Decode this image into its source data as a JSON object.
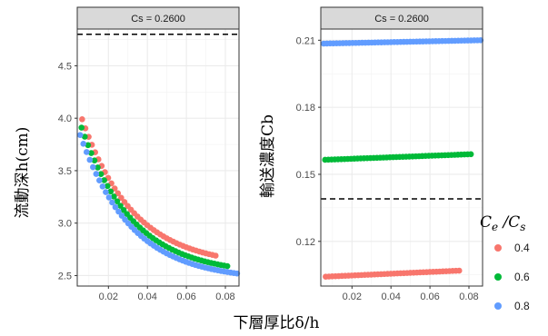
{
  "chart_data": {
    "type": "scatter",
    "xlabel": "下層厚比δ/h",
    "legend": {
      "title": "Ce/Cs",
      "position": "right",
      "entries": [
        {
          "label": "0.4",
          "color": "#F8766D"
        },
        {
          "label": "0.6",
          "color": "#00BA38"
        },
        {
          "label": "0.8",
          "color": "#619CFF"
        }
      ]
    },
    "panels": [
      {
        "strip": "Cs = 0.2600",
        "ylabel": "流動深h(cm)",
        "xlim": [
          0.004,
          0.087
        ],
        "ylim": [
          2.4,
          4.85
        ],
        "x_ticks": [
          0.02,
          0.04,
          0.06,
          0.08
        ],
        "x_tick_labels": [
          "0.02",
          "0.04",
          "0.06",
          "0.08"
        ],
        "y_ticks": [
          2.5,
          3.0,
          3.5,
          4.0,
          4.5
        ],
        "y_tick_labels": [
          "2.5",
          "3.0",
          "3.5",
          "4.0",
          "4.5"
        ],
        "reference_line": 4.8,
        "grid": true,
        "series": [
          {
            "name": "0.4",
            "color": "#F8766D",
            "curve": "decay",
            "x_start": 0.0065,
            "x_end": 0.075,
            "y_start": 3.99,
            "y_end": 2.69,
            "k": 38,
            "n_points": 42
          },
          {
            "name": "0.6",
            "color": "#00BA38",
            "curve": "decay",
            "x_start": 0.0062,
            "x_end": 0.081,
            "y_start": 3.91,
            "y_end": 2.59,
            "k": 38,
            "n_points": 46
          },
          {
            "name": "0.8",
            "color": "#619CFF",
            "curve": "decay",
            "x_start": 0.0055,
            "x_end": 0.086,
            "y_start": 3.84,
            "y_end": 2.52,
            "k": 38,
            "n_points": 50
          }
        ]
      },
      {
        "strip": "Cs = 0.2600",
        "ylabel": "輸送濃度Cb",
        "xlim": [
          0.004,
          0.087
        ],
        "ylim": [
          0.1,
          0.215
        ],
        "x_ticks": [
          0.02,
          0.04,
          0.06,
          0.08
        ],
        "x_tick_labels": [
          "0.02",
          "0.04",
          "0.06",
          "0.08"
        ],
        "y_ticks": [
          0.12,
          0.15,
          0.18,
          0.21
        ],
        "y_tick_labels": [
          "0.12",
          "0.15",
          "0.18",
          "0.21"
        ],
        "reference_line": 0.139,
        "grid": true,
        "series": [
          {
            "name": "0.4",
            "color": "#F8766D",
            "curve": "linear",
            "x_start": 0.0065,
            "x_end": 0.075,
            "y_start": 0.1042,
            "y_end": 0.1069,
            "n_points": 42
          },
          {
            "name": "0.6",
            "color": "#00BA38",
            "curve": "linear",
            "x_start": 0.0062,
            "x_end": 0.081,
            "y_start": 0.1565,
            "y_end": 0.159,
            "n_points": 46
          },
          {
            "name": "0.8",
            "color": "#619CFF",
            "curve": "linear",
            "x_start": 0.0055,
            "x_end": 0.086,
            "y_start": 0.2085,
            "y_end": 0.21,
            "n_points": 50
          }
        ]
      }
    ]
  }
}
